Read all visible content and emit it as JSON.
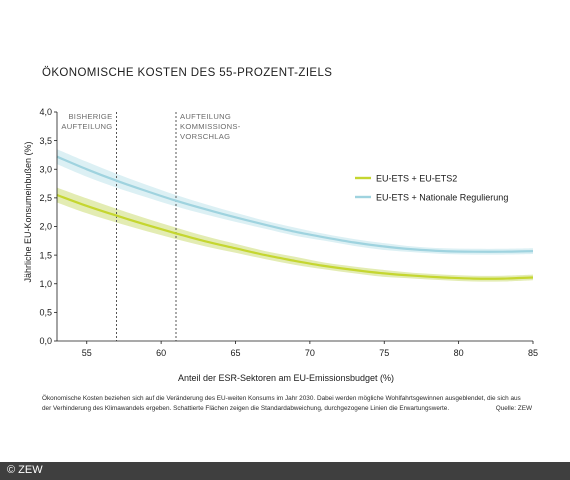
{
  "chart_data": {
    "type": "line",
    "title": "ÖKONOMISCHE KOSTEN DES 55-PROZENT-ZIELS",
    "xlabel": "Anteil der ESR-Sektoren am EU-Emissionsbudget (%)",
    "ylabel": "Jährliche EU-Konsumeinbußen (%)",
    "xlim": [
      53,
      85
    ],
    "ylim": [
      0,
      4
    ],
    "x_ticks": [
      55,
      60,
      65,
      70,
      75,
      80,
      85
    ],
    "y_ticks": [
      "0,0",
      "0,5",
      "1,0",
      "1,5",
      "2,0",
      "2,5",
      "3,0",
      "3,5",
      "4,0"
    ],
    "grid": false,
    "legend_position": "right",
    "series": [
      {
        "name": "EU-ETS + EU-ETS2",
        "color": "#c5d630",
        "band_color": "#e3ecb3",
        "x": [
          53,
          55,
          57,
          59,
          61,
          63,
          65,
          67,
          69,
          71,
          73,
          75,
          77,
          79,
          81,
          83,
          85
        ],
        "y": [
          2.55,
          2.36,
          2.19,
          2.03,
          1.88,
          1.74,
          1.62,
          1.5,
          1.4,
          1.31,
          1.24,
          1.18,
          1.14,
          1.11,
          1.09,
          1.09,
          1.11
        ],
        "band": [
          0.13,
          0.13,
          0.12,
          0.11,
          0.1,
          0.09,
          0.08,
          0.07,
          0.07,
          0.06,
          0.06,
          0.06,
          0.05,
          0.05,
          0.05,
          0.05,
          0.05
        ]
      },
      {
        "name": "EU-ETS + Nationale Regulierung",
        "color": "#9fd3df",
        "band_color": "#dcf0f4",
        "x": [
          53,
          55,
          57,
          59,
          61,
          63,
          65,
          67,
          69,
          71,
          73,
          75,
          77,
          79,
          81,
          83,
          85
        ],
        "y": [
          3.22,
          3.0,
          2.8,
          2.62,
          2.45,
          2.3,
          2.16,
          2.03,
          1.91,
          1.81,
          1.72,
          1.65,
          1.6,
          1.57,
          1.56,
          1.56,
          1.57
        ],
        "band": [
          0.13,
          0.13,
          0.12,
          0.11,
          0.1,
          0.09,
          0.08,
          0.07,
          0.07,
          0.06,
          0.06,
          0.06,
          0.05,
          0.05,
          0.05,
          0.05,
          0.05
        ]
      }
    ],
    "annotations": [
      {
        "x": 57,
        "lines": [
          "BISHERIGE",
          "AUFTEILUNG"
        ]
      },
      {
        "x": 61,
        "lines": [
          "AUFTEILUNG",
          "KOMMISSIONS-",
          "VORSCHLAG"
        ]
      }
    ]
  },
  "caption": {
    "line1": "Ökonomische Kosten beziehen sich auf die Veränderung des EU-weiten Konsums im Jahr 2030. Dabei werden mögliche Wohlfahrtsgewinnen ausgeblendet, die sich aus",
    "line2": "der Verhinderung des Klimawandels ergeben. Schattierte Flächen zeigen die Standardabweichung, durchgezogene Linien die Erwartungswerte.",
    "source": "Quelle: ZEW"
  },
  "footer": {
    "copyright": "© ZEW"
  }
}
